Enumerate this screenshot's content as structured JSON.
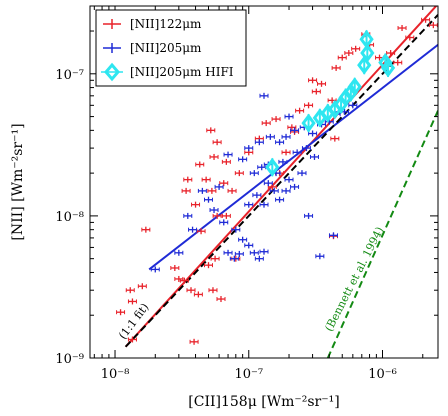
{
  "chart_data": {
    "type": "scatter",
    "title": "",
    "xlabel": "[CII]158μ [Wm⁻²sr⁻¹]",
    "ylabel": "[NII] [Wm⁻²sr⁻¹]",
    "xscale": "log",
    "yscale": "log",
    "xlim": [
      6.5e-09,
      2.6e-06
    ],
    "ylim": [
      1e-09,
      3e-07
    ],
    "x_ticks": [
      {
        "value": 1e-08,
        "label": "10⁻⁸"
      },
      {
        "value": 1e-07,
        "label": "10⁻⁷"
      },
      {
        "value": 1e-06,
        "label": "10⁻⁶"
      }
    ],
    "y_ticks": [
      {
        "value": 1e-09,
        "label": "10⁻⁹"
      },
      {
        "value": 1e-08,
        "label": "10⁻⁸"
      },
      {
        "value": 1e-07,
        "label": "10⁻⁷"
      }
    ],
    "legend_position": "top-left",
    "series": [
      {
        "name": "[NII]122μm",
        "color": "#e8222a",
        "marker": "errorbar",
        "points": [
          [
            1.1e-08,
            2.1e-09
          ],
          [
            1.35e-08,
            2.5e-09
          ],
          [
            1.6e-08,
            3.2e-09
          ],
          [
            1.3e-08,
            3e-09
          ],
          [
            1.35e-08,
            1.35e-09
          ],
          [
            3.9e-08,
            1.3e-09
          ],
          [
            1.7e-08,
            8e-09
          ],
          [
            2.8e-08,
            4.3e-09
          ],
          [
            3e-08,
            3.6e-09
          ],
          [
            3.3e-08,
            3.5e-09
          ],
          [
            3.7e-08,
            3e-09
          ],
          [
            4.2e-08,
            2.8e-09
          ],
          [
            5e-08,
            4.5e-09
          ],
          [
            5.4e-08,
            3e-09
          ],
          [
            6.2e-08,
            2.6e-09
          ],
          [
            4.4e-08,
            7.8e-09
          ],
          [
            5.6e-08,
            5e-09
          ],
          [
            5.8e-08,
            1e-08
          ],
          [
            6.8e-08,
            1e-08
          ],
          [
            3.4e-08,
            1.5e-08
          ],
          [
            4e-08,
            1.2e-08
          ],
          [
            4.8e-08,
            1.8e-08
          ],
          [
            3.5e-08,
            1.8e-08
          ],
          [
            5.3e-08,
            1.5e-08
          ],
          [
            6.5e-08,
            1.7e-08
          ],
          [
            4.3e-08,
            2.3e-08
          ],
          [
            5.5e-08,
            2.6e-08
          ],
          [
            5.2e-08,
            4e-08
          ],
          [
            5.8e-08,
            3.3e-08
          ],
          [
            6.8e-08,
            2.4e-08
          ],
          [
            8.5e-08,
            2e-08
          ],
          [
            7.5e-08,
            1.5e-08
          ],
          [
            1e-07,
            2.8e-08
          ],
          [
            1.2e-07,
            3.5e-08
          ],
          [
            1.35e-07,
            4.5e-08
          ],
          [
            1.5e-07,
            1.6e-08
          ],
          [
            1.7e-07,
            2e-08
          ],
          [
            1.9e-07,
            2.8e-08
          ],
          [
            2.1e-07,
            4.2e-08
          ],
          [
            2.4e-07,
            5.5e-08
          ],
          [
            2.8e-07,
            6e-08
          ],
          [
            3e-07,
            9e-08
          ],
          [
            3.2e-07,
            7.5e-08
          ],
          [
            3.5e-07,
            8.5e-08
          ],
          [
            4.2e-07,
            6.5e-08
          ],
          [
            4.5e-07,
            1.1e-07
          ],
          [
            5e-07,
            1.3e-07
          ],
          [
            5.6e-07,
            1.4e-07
          ],
          [
            6.3e-07,
            1.5e-07
          ],
          [
            7.5e-07,
            1.9e-07
          ],
          [
            8e-07,
            1.6e-07
          ],
          [
            9.5e-07,
            1.3e-07
          ],
          [
            1.15e-06,
            1.4e-07
          ],
          [
            1.3e-06,
            1.2e-07
          ],
          [
            1.4e-06,
            2.1e-07
          ],
          [
            1.6e-06,
            1.8e-07
          ],
          [
            2.1e-06,
            2.4e-07
          ],
          [
            2.4e-06,
            2.2e-07
          ],
          [
            4.4e-07,
            3.5e-08
          ],
          [
            2.2e-07,
            3.9e-08
          ],
          [
            1.6e-07,
            4.8e-08
          ],
          [
            4.3e-07,
            7.2e-09
          ],
          [
            8e-08,
            5e-09
          ]
        ]
      },
      {
        "name": "[NII]205μm",
        "color": "#1f2bd6",
        "marker": "errorbar",
        "points": [
          [
            2e-08,
            4.2e-09
          ],
          [
            3e-08,
            5.5e-09
          ],
          [
            3.5e-08,
            1e-08
          ],
          [
            3.8e-08,
            8e-09
          ],
          [
            4.5e-08,
            1.5e-08
          ],
          [
            5e-08,
            1.3e-08
          ],
          [
            5.5e-08,
            1.1e-08
          ],
          [
            6e-08,
            1.6e-08
          ],
          [
            6.5e-08,
            9e-09
          ],
          [
            7e-08,
            5.5e-09
          ],
          [
            7.8e-08,
            5e-09
          ],
          [
            8.5e-08,
            5.4e-09
          ],
          [
            9e-08,
            6.8e-09
          ],
          [
            1e-07,
            6.2e-09
          ],
          [
            1.1e-07,
            5.5e-09
          ],
          [
            1.2e-07,
            5e-09
          ],
          [
            1.3e-07,
            5.6e-09
          ],
          [
            1e-07,
            1.2e-08
          ],
          [
            1.15e-07,
            1.4e-08
          ],
          [
            1.3e-07,
            1.2e-08
          ],
          [
            1.4e-07,
            1.7e-08
          ],
          [
            1.55e-07,
            1.5e-08
          ],
          [
            1.7e-07,
            1.3e-08
          ],
          [
            1.9e-07,
            1.5e-08
          ],
          [
            2e-07,
            1.8e-08
          ],
          [
            2.2e-07,
            1.6e-08
          ],
          [
            2.5e-07,
            2e-08
          ],
          [
            1.1e-07,
            2e-08
          ],
          [
            1.25e-07,
            2.2e-08
          ],
          [
            1.4e-07,
            2.3e-08
          ],
          [
            1.6e-07,
            2e-08
          ],
          [
            1.8e-07,
            2.4e-08
          ],
          [
            2.3e-07,
            2.8e-08
          ],
          [
            2.7e-07,
            3e-08
          ],
          [
            3.1e-07,
            2.6e-08
          ],
          [
            1e-07,
            3e-08
          ],
          [
            1.2e-07,
            3.3e-08
          ],
          [
            1.45e-07,
            3.6e-08
          ],
          [
            1.7e-07,
            3.3e-08
          ],
          [
            1.9e-07,
            3.6e-08
          ],
          [
            2.2e-07,
            4e-08
          ],
          [
            2.6e-07,
            4.2e-08
          ],
          [
            3e-07,
            3.8e-08
          ],
          [
            3.5e-07,
            4.4e-08
          ],
          [
            4e-07,
            4.6e-08
          ],
          [
            4.5e-07,
            5.2e-08
          ],
          [
            5.2e-07,
            5.4e-08
          ],
          [
            6e-07,
            6e-08
          ],
          [
            3.4e-07,
            5.2e-09
          ],
          [
            2.8e-07,
            1e-08
          ],
          [
            4.3e-07,
            7.3e-09
          ],
          [
            8e-08,
            8e-09
          ],
          [
            1.3e-07,
            7e-08
          ],
          [
            2e-07,
            5e-08
          ],
          [
            7e-08,
            2.7e-08
          ],
          [
            9e-08,
            2.5e-08
          ]
        ]
      },
      {
        "name": "[NII]205μm HIFI",
        "color": "#2ee6f0",
        "marker": "diamond",
        "points": [
          [
            1.5e-07,
            2.2e-08
          ],
          [
            2.8e-07,
            4.5e-08
          ],
          [
            3.4e-07,
            4.9e-08
          ],
          [
            3.9e-07,
            5.3e-08
          ],
          [
            4.4e-07,
            5.6e-08
          ],
          [
            4.9e-07,
            6.1e-08
          ],
          [
            5.3e-07,
            6.8e-08
          ],
          [
            5.8e-07,
            7.4e-08
          ],
          [
            6.2e-07,
            8.1e-08
          ],
          [
            7.3e-07,
            1.15e-07
          ],
          [
            7.7e-07,
            1.4e-07
          ],
          [
            1.05e-06,
            1.2e-07
          ],
          [
            1.1e-06,
            1.1e-07
          ],
          [
            7.6e-07,
            1.75e-07
          ]
        ]
      }
    ],
    "lines": [
      {
        "name": "",
        "color": "#e8222a",
        "style": "solid",
        "x": [
          1.2e-08,
          2.6e-06
        ],
        "y": [
          1.2e-09,
          3.1e-07
        ]
      },
      {
        "name": "",
        "color": "#1f2bd6",
        "style": "solid",
        "x": [
          1.8e-08,
          2.6e-06
        ],
        "y": [
          4.2e-09,
          1.6e-07
        ]
      },
      {
        "name": "",
        "color": "#000000",
        "style": "dashed",
        "x": [
          1.2e-08,
          2.6e-06
        ],
        "y": [
          1.2e-09,
          2.6e-07
        ]
      },
      {
        "name": "",
        "color": "#138a13",
        "style": "dashed",
        "x": [
          3.9e-07,
          2.6e-06
        ],
        "y": [
          1e-09,
          5.5e-08
        ]
      }
    ],
    "annotations": [
      {
        "text": "(1:1 fit)",
        "color": "#000000",
        "x": 1.45e-08,
        "y": 1.75e-09,
        "rotate": -53
      },
      {
        "text": "(Bennett et al. 1994)",
        "color": "#138a13",
        "x": 6.5e-07,
        "y": 3.5e-09,
        "rotate": -63
      }
    ]
  }
}
